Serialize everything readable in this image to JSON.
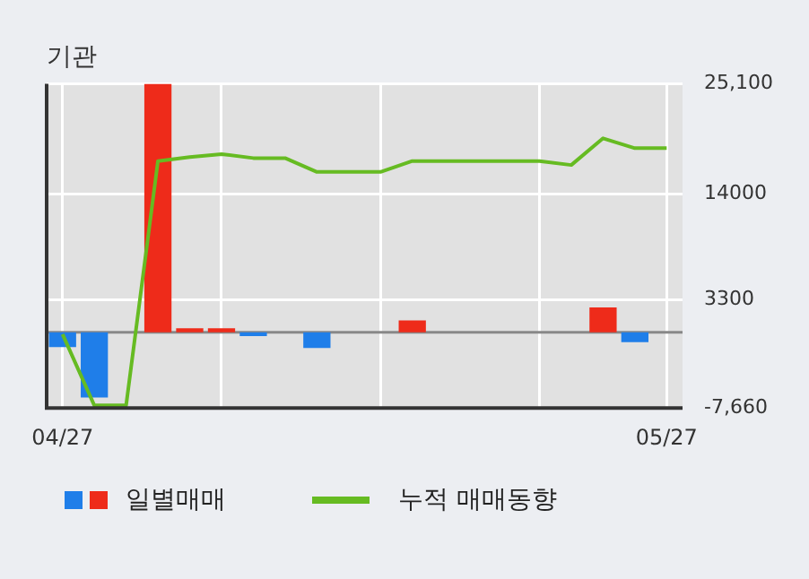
{
  "chart_data": {
    "type": "bar",
    "title": "기관",
    "categories": [
      "04/27",
      null,
      null,
      null,
      null,
      null,
      null,
      null,
      null,
      null,
      null,
      null,
      null,
      null,
      null,
      null,
      null,
      null,
      null,
      "05/27"
    ],
    "series": [
      {
        "name": "일별매매",
        "colors": [
          "#1f7ee9",
          "#1f7ee9",
          null,
          "#ee2b1a",
          "#ee2b1a",
          "#ee2b1a",
          "#1f7ee9",
          null,
          "#1f7ee9",
          null,
          null,
          "#ee2b1a",
          null,
          null,
          null,
          null,
          null,
          "#ee2b1a",
          "#1f7ee9",
          null
        ],
        "values": [
          -1500,
          -6600,
          null,
          25100,
          400,
          400,
          -400,
          null,
          -1600,
          null,
          null,
          1200,
          null,
          null,
          null,
          null,
          null,
          2500,
          -1000,
          null
        ]
      },
      {
        "name": "누적 매매동향",
        "type": "line",
        "color": "#66bb22",
        "values": [
          -200,
          -7400,
          -7400,
          17300,
          17700,
          18000,
          17600,
          17600,
          16200,
          16200,
          16200,
          17300,
          17300,
          17300,
          17300,
          17300,
          16900,
          19600,
          18600,
          18600
        ]
      }
    ],
    "ylim": [
      -7660,
      25100
    ],
    "yticks": [
      {
        "value": -7660,
        "label": "-7,660"
      },
      {
        "value": 3300,
        "label": "3300"
      },
      {
        "value": 14000,
        "label": "14000"
      },
      {
        "value": 25100,
        "label": "25,100"
      }
    ],
    "grid": true,
    "legend": "bottom"
  }
}
